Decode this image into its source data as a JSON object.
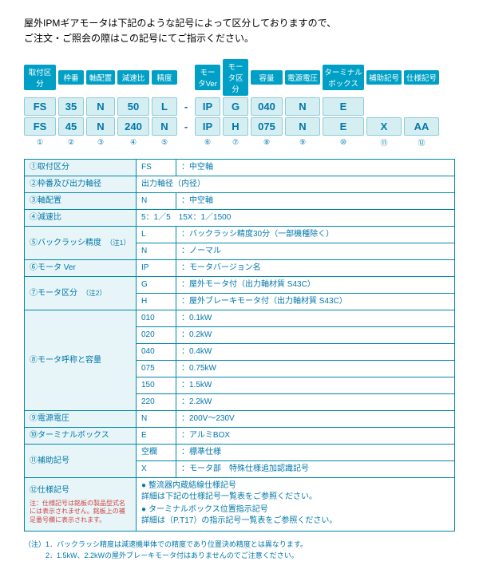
{
  "intro": {
    "line1": "屋外IPMギアモータは下記のような記号によって区分しておりますので、",
    "line2": "ご注文・ご照会の際はこの記号にてご指示ください。"
  },
  "widths": {
    "c1": 40,
    "c2": 32,
    "c3": 36,
    "c4": 40,
    "c5": 32,
    "dash": 16,
    "c6": 32,
    "c7": 32,
    "c8": 40,
    "c9": 44,
    "c10": 52,
    "c11": 44,
    "c12": 44
  },
  "headers": [
    "取付区分",
    "枠番",
    "軸配置",
    "減速比",
    "精度",
    "モータVer",
    "モータ区分",
    "容量",
    "電源電圧",
    "ターミナルボックス",
    "補助記号",
    "仕様記号"
  ],
  "row1": [
    "FS",
    "35",
    "N",
    "50",
    "L",
    "-",
    "IP",
    "G",
    "040",
    "N",
    "E",
    "",
    ""
  ],
  "row2": [
    "FS",
    "45",
    "N",
    "240",
    "N",
    "-",
    "IP",
    "H",
    "075",
    "N",
    "E",
    "X",
    "AA"
  ],
  "nums": [
    "①",
    "②",
    "③",
    "④",
    "⑤",
    "",
    "⑥",
    "⑦",
    "⑧",
    "⑨",
    "⑩",
    "⑪",
    "⑫"
  ],
  "spec": [
    {
      "label": "①取付区分",
      "rows": [
        {
          "code": "FS",
          "desc": "：中空軸"
        }
      ]
    },
    {
      "label": "②枠番及び出力軸径",
      "rows": [
        {
          "code": "",
          "desc": "出力軸径（内径）",
          "span": true
        }
      ]
    },
    {
      "label": "③軸配置",
      "rows": [
        {
          "code": "N",
          "desc": "：中空軸"
        }
      ]
    },
    {
      "label": "④減速比",
      "rows": [
        {
          "code": "",
          "desc": "5：1／5　15X：1／1500",
          "span": true
        }
      ]
    },
    {
      "label": "⑤バックラッシ精度",
      "note": "（注1）",
      "rows": [
        {
          "code": "L",
          "desc": "：バックラッシ精度30分（一部機種除く）"
        },
        {
          "code": "N",
          "desc": "：ノーマル"
        }
      ]
    },
    {
      "label": "⑥モータ Ver",
      "rows": [
        {
          "code": "IP",
          "desc": "：モータバージョン名"
        }
      ]
    },
    {
      "label": "⑦モータ区分",
      "note": "（注2）",
      "rows": [
        {
          "code": "G",
          "desc": "：屋外モータ付（出力軸材質 S43C）"
        },
        {
          "code": "H",
          "desc": "：屋外ブレーキモータ付（出力軸材質 S43C）"
        }
      ]
    },
    {
      "label": "⑧モータ呼称と容量",
      "rows": [
        {
          "code": "010",
          "desc": "：0.1kW"
        },
        {
          "code": "020",
          "desc": "：0.2kW"
        },
        {
          "code": "040",
          "desc": "：0.4kW"
        },
        {
          "code": "075",
          "desc": "：0.75kW"
        },
        {
          "code": "150",
          "desc": "：1.5kW"
        },
        {
          "code": "220",
          "desc": "：2.2kW"
        }
      ]
    },
    {
      "label": "⑨電源電圧",
      "rows": [
        {
          "code": "N",
          "desc": "：200V～230V"
        }
      ]
    },
    {
      "label": "⑩ターミナルボックス",
      "rows": [
        {
          "code": "E",
          "desc": "：アルミBOX"
        }
      ]
    },
    {
      "label": "⑪補助記号",
      "rows": [
        {
          "code": "空欄",
          "desc": "：標準仕様"
        },
        {
          "code": "X",
          "desc": "：モータ部　特殊仕様追加認識記号"
        }
      ]
    },
    {
      "label": "⑫仕様記号",
      "aux": "注：仕様記号は銘板の製品型式名には表示されません。銘板上の補足番号欄に表示されます。",
      "rows": [
        {
          "code": "",
          "span": true,
          "list": [
            {
              "t": "整流器内蔵結線仕様記号",
              "d": "詳細は下記の仕様記号一覧表をご参照ください。"
            },
            {
              "t": "ターミナルボックス位置指示記号",
              "d": "詳細は（P.T17）の指示記号一覧表をご参照ください。"
            }
          ]
        }
      ]
    }
  ],
  "footnotes": {
    "n1": "（注）1．バックラッシ精度は減速機単体での精度であり位置決め精度とは異なります。",
    "n2": "　　　2．1.5kW、2.2kWの屋外ブレーキモータ付はありませんのでご注意ください。"
  }
}
